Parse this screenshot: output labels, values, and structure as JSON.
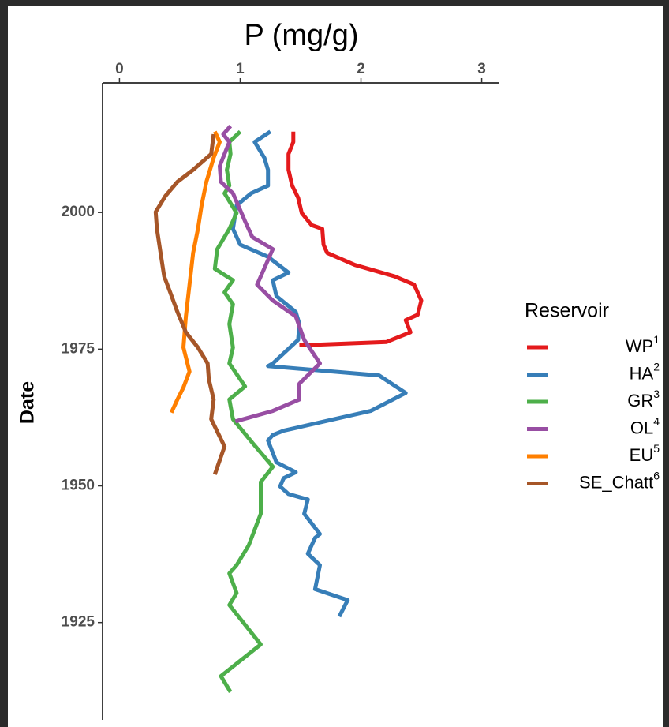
{
  "chart_data": {
    "type": "line",
    "title": "P (mg/g)",
    "ylabel": "Date",
    "legend_title": "Reservoir",
    "legend": "right",
    "xlim": [
      -0.14,
      3.14
    ],
    "xticks": [
      0,
      1,
      2,
      3
    ],
    "ylim": [
      1907.2,
      2023.7
    ],
    "yticks": [
      1925,
      1950,
      1975,
      2000
    ],
    "series": [
      {
        "name": "WP",
        "superscript": "1",
        "color": "#e41a1c",
        "x": [
          1.44,
          1.44,
          1.4,
          1.4,
          1.43,
          1.48,
          1.51,
          1.59,
          1.68,
          1.69,
          1.72,
          1.95,
          2.28,
          2.44,
          2.5,
          2.47,
          2.37,
          2.41,
          2.21,
          1.49
        ],
        "y": [
          2014.8,
          2012.9,
          2010.7,
          2007.8,
          2004.9,
          2002.7,
          1999.9,
          1997.7,
          1997.0,
          1994.1,
          1992.6,
          1990.4,
          1988.3,
          1986.8,
          1983.9,
          1981.3,
          1980.3,
          1978.1,
          1976.3,
          1975.7
        ]
      },
      {
        "name": "HA",
        "superscript": "2",
        "color": "#377eb8",
        "x": [
          1.25,
          1.12,
          1.2,
          1.23,
          1.23,
          1.09,
          0.97,
          0.94,
          1.0,
          1.23,
          1.4,
          1.27,
          1.3,
          1.46,
          1.49,
          1.48,
          1.27,
          1.23,
          2.15,
          2.37,
          2.08,
          1.36,
          1.27,
          1.23,
          1.3,
          1.46,
          1.36,
          1.33,
          1.4,
          1.56,
          1.53,
          1.66,
          1.62,
          1.56,
          1.66,
          1.62,
          1.89,
          1.82
        ],
        "y": [
          2014.8,
          2012.9,
          2010.0,
          2007.8,
          2004.9,
          2003.5,
          2001.3,
          1997.0,
          1994.1,
          1991.9,
          1989.0,
          1987.6,
          1984.7,
          1981.8,
          1979.6,
          1976.7,
          1972.4,
          1971.9,
          1970.2,
          1967.0,
          1963.7,
          1960.1,
          1959.3,
          1958.3,
          1954.3,
          1952.5,
          1951.4,
          1949.9,
          1948.5,
          1947.5,
          1944.9,
          1941.2,
          1940.5,
          1937.6,
          1935.5,
          1931.1,
          1929.1,
          1926.1
        ]
      },
      {
        "name": "GR",
        "superscript": "3",
        "color": "#4daf4a",
        "x": [
          1.0,
          0.91,
          0.92,
          0.89,
          0.91,
          0.87,
          0.97,
          0.91,
          0.81,
          0.79,
          0.94,
          0.87,
          0.94,
          0.91,
          0.94,
          0.91,
          1.04,
          0.91,
          0.94,
          1.1,
          1.27,
          1.17,
          1.17,
          1.07,
          0.97,
          0.91,
          0.97,
          0.91,
          1.17,
          0.84,
          0.92
        ],
        "y": [
          2014.8,
          2012.9,
          2010.7,
          2007.8,
          2004.9,
          2003.5,
          1999.9,
          1997.0,
          1993.3,
          1989.7,
          1987.6,
          1985.4,
          1983.2,
          1979.6,
          1975.3,
          1972.4,
          1968.2,
          1965.8,
          1962.2,
          1957.9,
          1953.5,
          1950.7,
          1944.9,
          1939.1,
          1935.5,
          1934.0,
          1930.4,
          1928.2,
          1921.0,
          1915.2,
          1912.3
        ]
      },
      {
        "name": "OL",
        "superscript": "4",
        "color": "#984ea3",
        "x": [
          0.92,
          0.86,
          0.91,
          0.87,
          0.83,
          0.84,
          0.94,
          1.04,
          1.1,
          1.27,
          1.14,
          1.27,
          1.46,
          1.53,
          1.66,
          1.49,
          1.49,
          1.27,
          0.96
        ],
        "y": [
          2015.8,
          2014.3,
          2012.9,
          2010.7,
          2008.5,
          2005.6,
          2003.5,
          1998.4,
          1995.5,
          1993.3,
          1986.8,
          1983.9,
          1981.0,
          1976.7,
          1972.4,
          1968.7,
          1965.8,
          1963.7,
          1961.8
        ]
      },
      {
        "name": "EU",
        "superscript": "5",
        "color": "#ff7f00",
        "x": [
          0.79,
          0.83,
          0.78,
          0.72,
          0.68,
          0.65,
          0.61,
          0.58,
          0.55,
          0.53,
          0.58,
          0.53,
          0.48,
          0.43
        ],
        "y": [
          2014.8,
          2012.9,
          2010.0,
          2005.6,
          2001.3,
          1997.0,
          1992.6,
          1986.8,
          1981.0,
          1975.3,
          1970.9,
          1968.0,
          1965.8,
          1963.4
        ]
      },
      {
        "name": "SE_Chatt",
        "superscript": "6",
        "color": "#a65628",
        "x": [
          0.78,
          0.76,
          0.61,
          0.48,
          0.38,
          0.3,
          0.31,
          0.34,
          0.37,
          0.42,
          0.48,
          0.55,
          0.65,
          0.73,
          0.74,
          0.78,
          0.76,
          0.87,
          0.79
        ],
        "y": [
          2014.3,
          2010.7,
          2007.8,
          2005.6,
          2003.0,
          2000.1,
          1997.0,
          1992.6,
          1988.3,
          1985.4,
          1981.8,
          1978.1,
          1975.3,
          1972.4,
          1969.5,
          1965.8,
          1962.2,
          1957.2,
          1952.1
        ]
      }
    ]
  }
}
